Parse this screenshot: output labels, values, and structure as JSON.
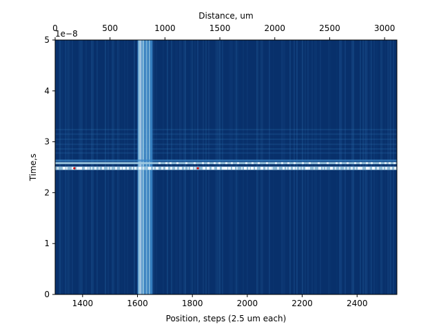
{
  "chart_data": {
    "type": "heatmap",
    "colormap": "Blues (reversed)",
    "colors": {
      "background": "#08306b",
      "background_alt": "#0b4a8f",
      "mid": "#3a86c8",
      "light": "#9ecae1",
      "peak": "#f7fbff",
      "hot_spot": "#cc0000"
    },
    "xlabel": "Position, steps (2.5 um each)",
    "ylabel": "Time,s",
    "top_xlabel": "Distance, um",
    "y_offset_label": "1e−8",
    "xlim": [
      1300,
      2545
    ],
    "ylim": [
      0,
      5
    ],
    "top_xlim": [
      0,
      3112
    ],
    "x_ticks": [
      {
        "value": 1400,
        "label": "1400"
      },
      {
        "value": 1600,
        "label": "1600"
      },
      {
        "value": 1800,
        "label": "1800"
      },
      {
        "value": 2000,
        "label": "2000"
      },
      {
        "value": 2200,
        "label": "2200"
      },
      {
        "value": 2400,
        "label": "2400"
      }
    ],
    "y_ticks": [
      {
        "value": 0,
        "label": "0"
      },
      {
        "value": 1,
        "label": "1"
      },
      {
        "value": 2,
        "label": "2"
      },
      {
        "value": 3,
        "label": "3"
      },
      {
        "value": 4,
        "label": "4"
      },
      {
        "value": 5,
        "label": "5"
      }
    ],
    "top_ticks": [
      {
        "value": 0,
        "label": "0"
      },
      {
        "value": 500,
        "label": "500"
      },
      {
        "value": 1000,
        "label": "1000"
      },
      {
        "value": 1500,
        "label": "1500"
      },
      {
        "value": 2000,
        "label": "2000"
      },
      {
        "value": 2500,
        "label": "2500"
      },
      {
        "value": 3000,
        "label": "3000"
      }
    ],
    "vertical_band": {
      "x_start": 1600,
      "x_end": 1655
    },
    "horizontal_bands": [
      {
        "y": 2.48,
        "intensity": "peak"
      },
      {
        "y": 2.58,
        "intensity": "light"
      },
      {
        "y": 2.63,
        "intensity": "mid"
      }
    ],
    "grid": false
  }
}
